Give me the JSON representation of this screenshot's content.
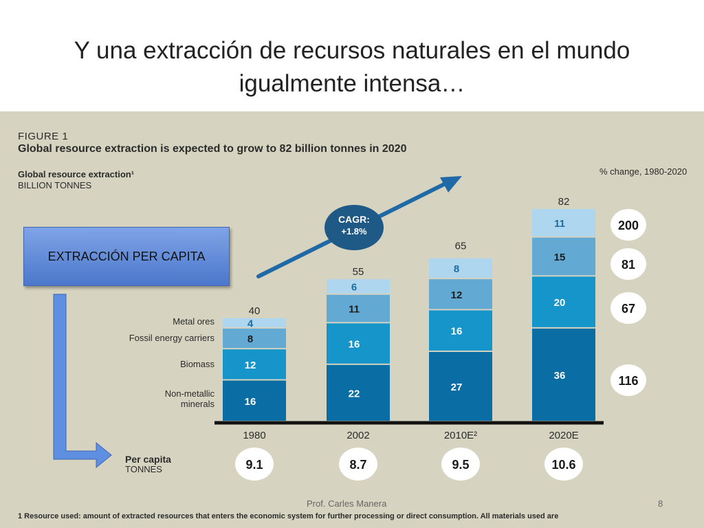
{
  "slide": {
    "title": "Y una extracción de recursos naturales en el mundo igualmente intensa…",
    "callout": "EXTRACCIÓN PER CAPITA",
    "author": "Prof. Carles Manera",
    "page_number": "8"
  },
  "figure": {
    "label": "FIGURE 1",
    "title": "Global resource extraction is expected to grow to 82 billion tonnes in 2020",
    "subtitle": "Global resource extraction¹",
    "unit": "BILLION TONNES",
    "pct_change_header": "% change, 1980-2020",
    "cagr_label": "CAGR:",
    "cagr_value": "+1.8%",
    "per_capita_label": "Per capita",
    "per_capita_unit": "TONNES",
    "footnote": "1 Resource used: amount of extracted resources that enters the economic system for further processing or direct consumption. All materials used are"
  },
  "colors": {
    "non_metallic": "#0a6ea5",
    "biomass": "#1595c9",
    "fossil": "#62a9d3",
    "metal": "#aed6ef",
    "background": "#d6d3c0",
    "cagr": "#1f5a86"
  },
  "chart_data": {
    "type": "bar",
    "stacked": true,
    "categories": [
      "1980",
      "2002",
      "2010E²",
      "2020E"
    ],
    "series": [
      {
        "name": "Non-metallic minerals",
        "values": [
          16,
          22,
          27,
          36
        ]
      },
      {
        "name": "Biomass",
        "values": [
          12,
          16,
          16,
          20
        ]
      },
      {
        "name": "Fossil energy carriers",
        "values": [
          8,
          11,
          12,
          15
        ]
      },
      {
        "name": "Metal ores",
        "values": [
          4,
          6,
          8,
          11
        ]
      }
    ],
    "totals": [
      40,
      55,
      65,
      82
    ],
    "pct_change": [
      116,
      67,
      81,
      200
    ],
    "per_capita": [
      9.1,
      8.7,
      9.5,
      10.6
    ]
  }
}
